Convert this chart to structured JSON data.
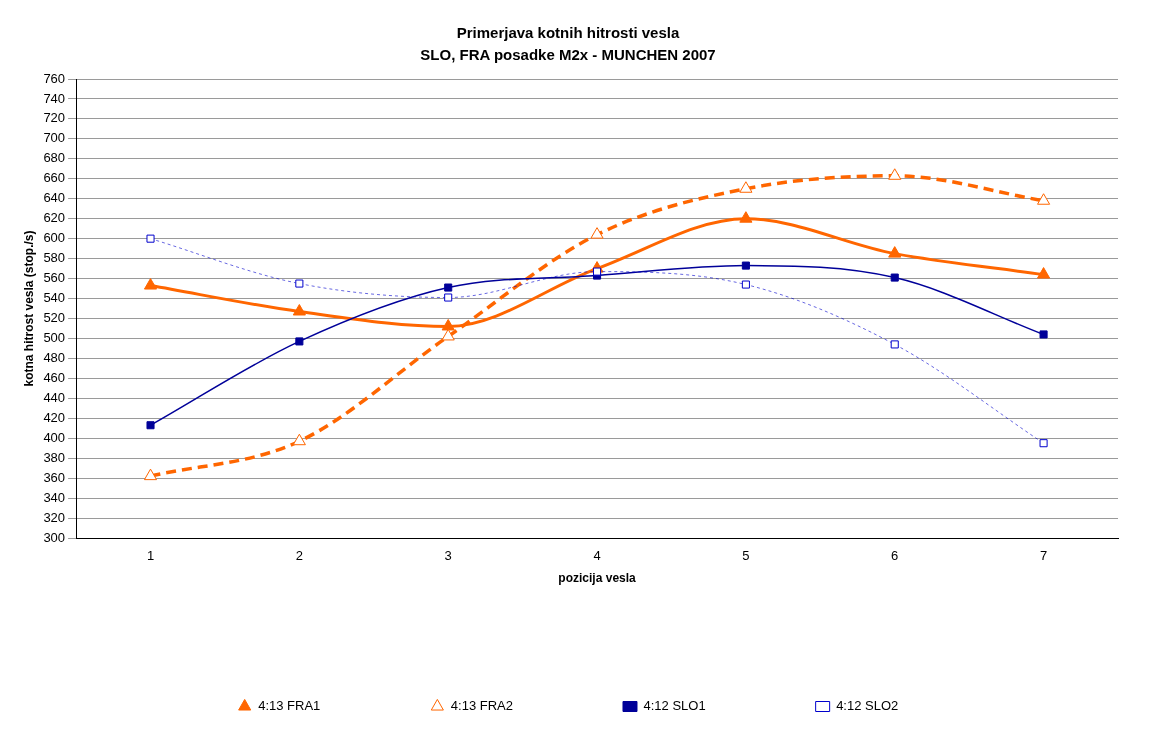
{
  "chart_data": {
    "type": "line",
    "title": "Primerjava kotnih hitrosti vesla",
    "subtitle": "SLO, FRA posadke M2x - MUNCHEN 2007",
    "xlabel": "pozicija vesla",
    "ylabel": "kotna hitrost vesla (stop./s)",
    "categories": [
      "1",
      "2",
      "3",
      "4",
      "5",
      "6",
      "7"
    ],
    "ylim": [
      300,
      760
    ],
    "yticks": [
      300,
      320,
      340,
      360,
      380,
      400,
      420,
      440,
      460,
      480,
      500,
      520,
      540,
      560,
      580,
      600,
      620,
      640,
      660,
      680,
      700,
      720,
      740,
      760
    ],
    "grid": "y",
    "legend": "bottom",
    "series": [
      {
        "name": "4:13 FRA1",
        "color": "#ff6600",
        "values": [
          553,
          527,
          512,
          570,
          620,
          585,
          564
        ],
        "marker": "triangle",
        "line_style": "solid"
      },
      {
        "name": "4:13 FRA2",
        "color": "#ff6600",
        "values": [
          362,
          397,
          502,
          604,
          650,
          663,
          638
        ],
        "marker": "triangle",
        "line_style": "dashed"
      },
      {
        "name": "4:12 SLO1",
        "color": "#000099",
        "values": [
          413,
          497,
          551,
          563,
          573,
          561,
          504
        ],
        "marker": "square",
        "line_style": "solid"
      },
      {
        "name": "4:12 SLO2",
        "color": "#0000cc",
        "values": [
          600,
          555,
          541,
          567,
          554,
          494,
          395
        ],
        "marker": "square",
        "line_style": "dotted"
      }
    ]
  }
}
